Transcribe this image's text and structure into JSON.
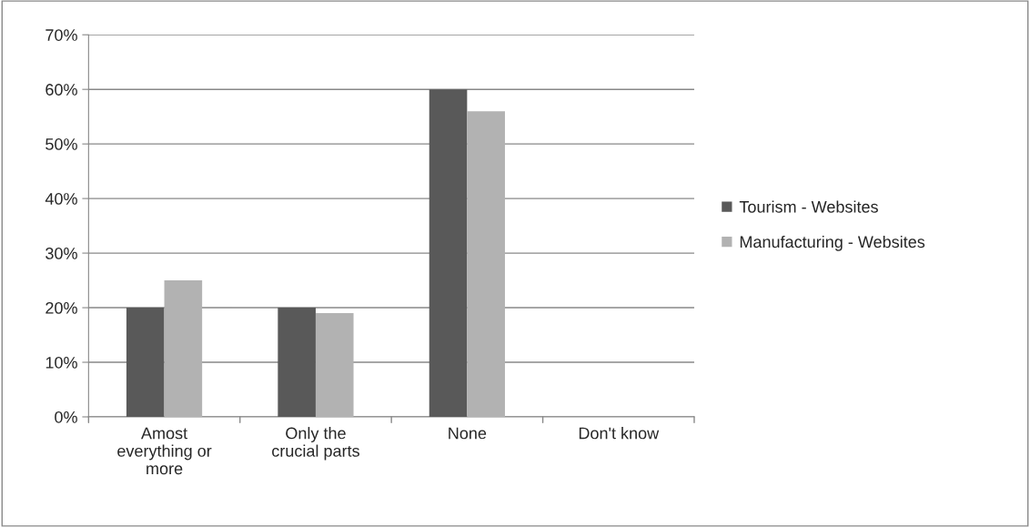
{
  "chart_data": {
    "type": "bar",
    "categories": [
      "Amost\neverything or\nmore",
      "Only the\ncrucial parts",
      "None",
      "Don't know"
    ],
    "series": [
      {
        "name": "Tourism - Websites",
        "color": "#595959",
        "values": [
          20,
          20,
          60,
          0
        ]
      },
      {
        "name": "Manufacturing - Websites",
        "color": "#b2b2b2",
        "values": [
          25,
          19,
          56,
          0
        ]
      }
    ],
    "ylim": [
      0,
      70
    ],
    "yticks": [
      {
        "value": 0,
        "label": "0%"
      },
      {
        "value": 10,
        "label": "10%"
      },
      {
        "value": 20,
        "label": "20%"
      },
      {
        "value": 30,
        "label": "30%"
      },
      {
        "value": 40,
        "label": "40%"
      },
      {
        "value": 50,
        "label": "50%"
      },
      {
        "value": 60,
        "label": "60%"
      },
      {
        "value": 70,
        "label": "70%"
      }
    ],
    "grid": "y",
    "legend": "right"
  }
}
